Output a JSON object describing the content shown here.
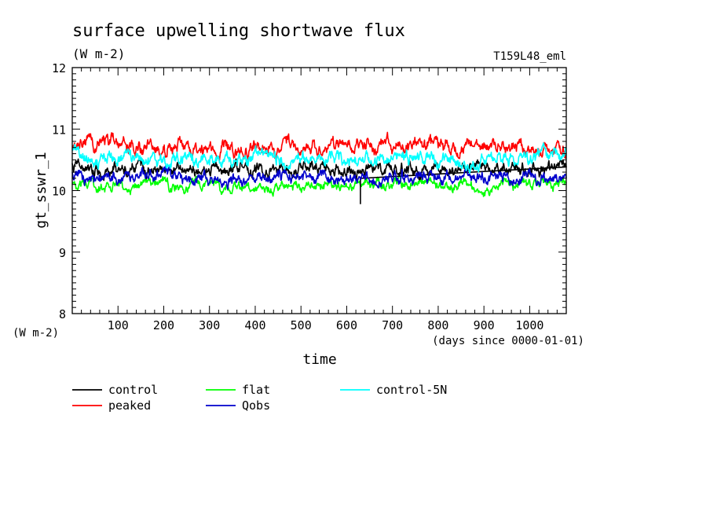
{
  "chart_data": {
    "type": "line",
    "title": "surface upwelling shortwave flux",
    "subtitle": "(W m-2)",
    "run_label": "T159L48_eml",
    "ylabel": "gt_sswr_1",
    "yunit": "(W m-2)",
    "xlabel": "time",
    "xunit": "(days since 0000-01-01)",
    "xlim": [
      0,
      1080
    ],
    "ylim": [
      8,
      12
    ],
    "xticks": [
      "100",
      "200",
      "300",
      "400",
      "500",
      "600",
      "700",
      "800",
      "900",
      "1000"
    ],
    "yticks": [
      "8",
      "9",
      "10",
      "11",
      "12"
    ],
    "grid": false,
    "legend_position": "bottom",
    "series": [
      {
        "name": "control",
        "color": "#000000",
        "mean": 10.35,
        "amplitude": 0.12,
        "min": 9.78,
        "x": [
          0,
          60,
          120,
          180,
          240,
          300,
          360,
          420,
          480,
          540,
          600,
          660,
          720,
          780,
          840,
          900,
          960,
          1020,
          1080
        ],
        "values": [
          10.42,
          10.3,
          10.38,
          10.33,
          10.36,
          10.3,
          10.4,
          10.32,
          10.38,
          10.34,
          10.3,
          10.33,
          10.37,
          10.35,
          10.32,
          10.38,
          10.34,
          10.36,
          10.38
        ]
      },
      {
        "name": "peaked",
        "color": "#ff0000",
        "mean": 10.7,
        "amplitude": 0.14,
        "max": 10.97,
        "x": [
          0,
          60,
          120,
          180,
          240,
          300,
          360,
          420,
          480,
          540,
          600,
          660,
          720,
          780,
          840,
          900,
          960,
          1020,
          1080
        ],
        "values": [
          10.68,
          10.82,
          10.72,
          10.66,
          10.72,
          10.68,
          10.7,
          10.74,
          10.76,
          10.68,
          10.72,
          10.74,
          10.7,
          10.78,
          10.72,
          10.74,
          10.7,
          10.72,
          10.6
        ]
      },
      {
        "name": "flat",
        "color": "#00ff00",
        "mean": 10.1,
        "amplitude": 0.1,
        "min": 9.82,
        "x": [
          0,
          60,
          120,
          180,
          240,
          300,
          360,
          420,
          480,
          540,
          600,
          660,
          720,
          780,
          840,
          900,
          960,
          1020,
          1080
        ],
        "values": [
          10.1,
          10.08,
          10.06,
          10.12,
          10.08,
          10.1,
          10.06,
          10.04,
          10.08,
          10.1,
          10.04,
          10.08,
          10.1,
          10.12,
          10.08,
          10.06,
          10.1,
          10.08,
          10.12
        ]
      },
      {
        "name": "control-5N",
        "color": "#00ffff",
        "mean": 10.52,
        "amplitude": 0.13,
        "max": 10.8,
        "x": [
          0,
          60,
          120,
          180,
          240,
          300,
          360,
          420,
          480,
          540,
          600,
          660,
          720,
          780,
          840,
          900,
          960,
          1020,
          1080
        ],
        "values": [
          10.6,
          10.5,
          10.52,
          10.48,
          10.55,
          10.5,
          10.52,
          10.55,
          10.5,
          10.55,
          10.52,
          10.48,
          10.55,
          10.52,
          10.5,
          10.52,
          10.5,
          10.55,
          10.62
        ]
      },
      {
        "name": "Qobs",
        "color": "#0000cc",
        "mean": 10.22,
        "amplitude": 0.12,
        "min": 9.85,
        "x": [
          0,
          60,
          120,
          180,
          240,
          300,
          360,
          420,
          480,
          540,
          600,
          660,
          720,
          780,
          840,
          900,
          960,
          1020,
          1080
        ],
        "values": [
          10.25,
          10.2,
          10.22,
          10.25,
          10.2,
          10.22,
          10.18,
          10.24,
          10.2,
          10.25,
          10.22,
          10.2,
          10.25,
          10.22,
          10.24,
          10.2,
          10.22,
          10.18,
          10.2
        ]
      }
    ]
  }
}
